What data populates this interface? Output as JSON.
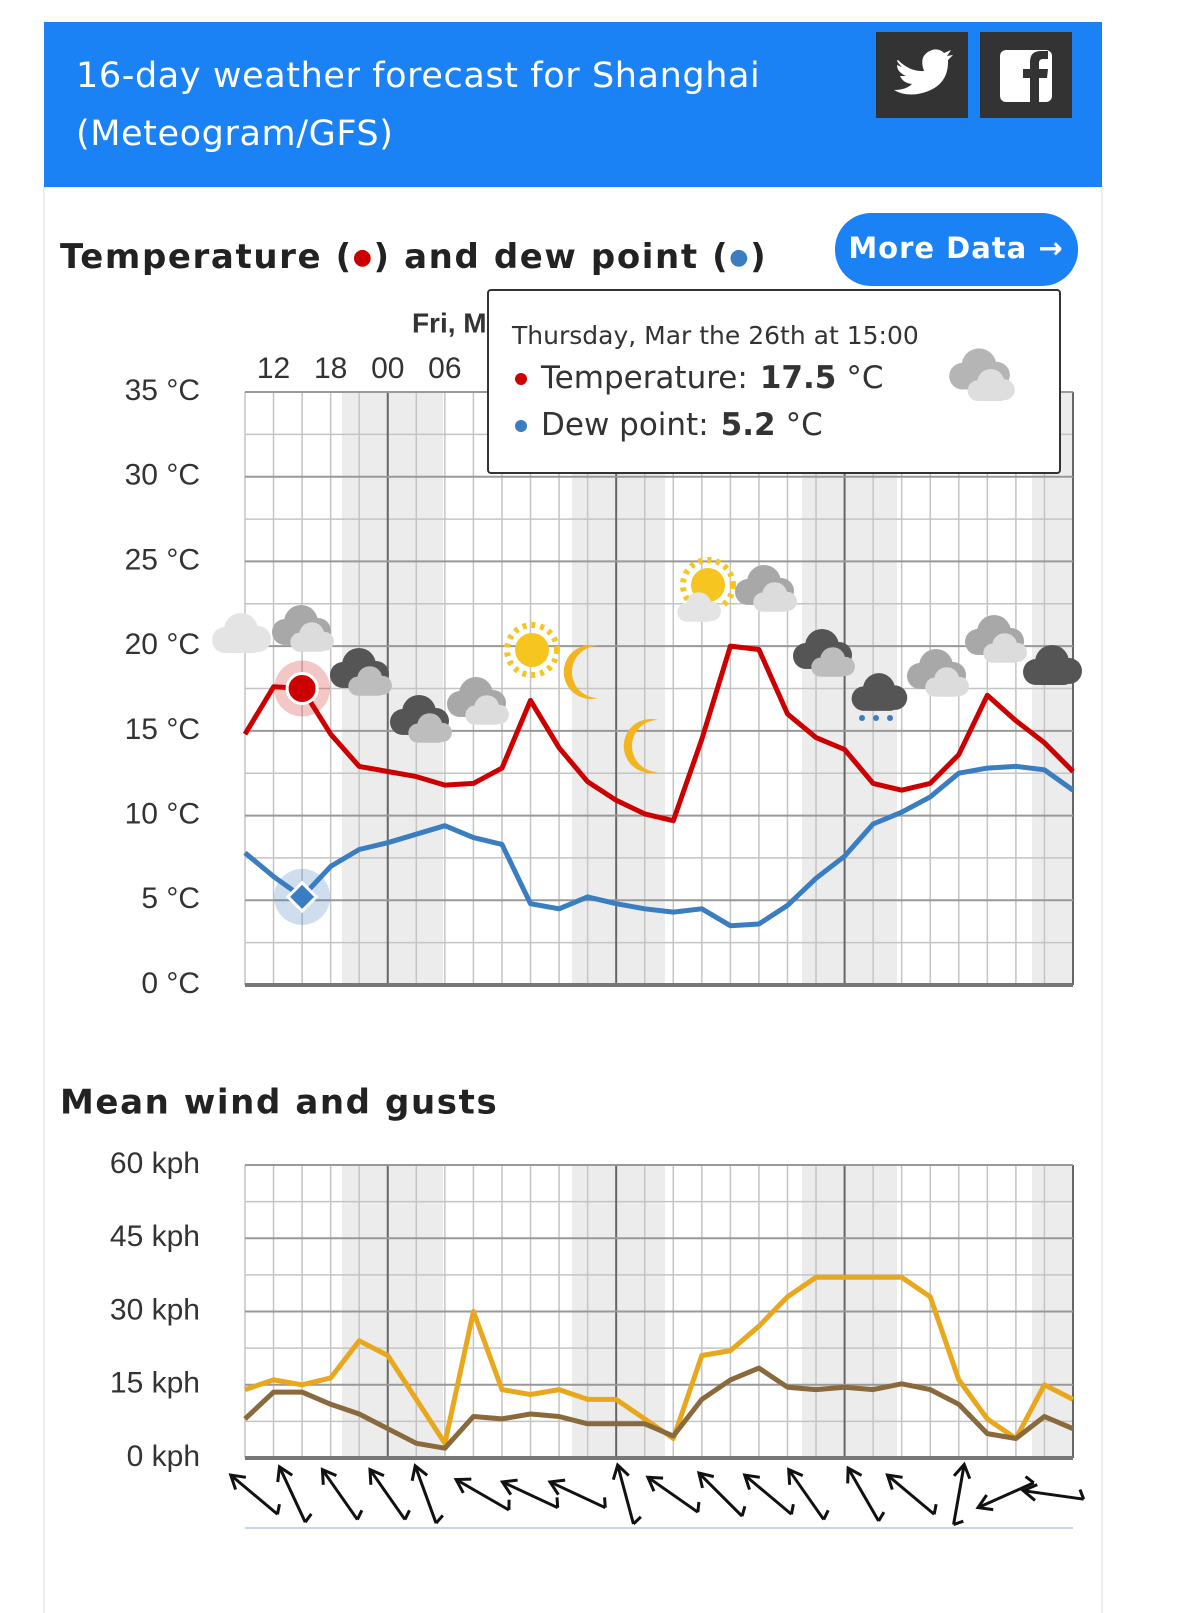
{
  "header": {
    "title": "16-day weather forecast for Shanghai (Meteogram/GFS)"
  },
  "buttons": {
    "more_data": "More Data →"
  },
  "tooltip": {
    "title": "Thursday, Mar the 26th at 15:00",
    "items": [
      {
        "label": "Temperature:",
        "unit": "°C"
      },
      {
        "label": "Dew point:",
        "unit": "°C"
      }
    ]
  },
  "chart_data": [
    {
      "type": "line",
      "title": "Temperature (●) and dew point (●)",
      "x": [
        9,
        12,
        15,
        18,
        21,
        24,
        27,
        30,
        33,
        36,
        39,
        42,
        45,
        48,
        51,
        54,
        57,
        60,
        63,
        66,
        69,
        72,
        75,
        78,
        81,
        84,
        87,
        90,
        93,
        96
      ],
      "xlim": [
        9,
        96
      ],
      "xticks": [
        12,
        18,
        {
          "value": 24,
          "label": "00"
        },
        {
          "value": 30,
          "label": "06"
        }
      ],
      "day_labels": [
        {
          "value": 36,
          "label": "Fri, M"
        }
      ],
      "ylim": [
        0,
        35
      ],
      "yticks": [
        {
          "value": 0,
          "label": "0 °C"
        },
        {
          "value": 5,
          "label": "5 °C"
        },
        {
          "value": 10,
          "label": "10 °C"
        },
        {
          "value": 15,
          "label": "15 °C"
        },
        {
          "value": 20,
          "label": "20 °C"
        },
        {
          "value": 25,
          "label": "25 °C"
        },
        {
          "value": 30,
          "label": "30 °C"
        },
        {
          "value": 35,
          "label": "35 °C"
        }
      ],
      "grid": true,
      "series": [
        {
          "color": "#cc0000",
          "values": [
            14.8,
            17.6,
            17.5,
            14.8,
            12.9,
            12.6,
            12.3,
            11.8,
            11.9,
            12.8,
            16.8,
            14.0,
            12.0,
            10.9,
            10.1,
            9.7,
            14.5,
            20.0,
            19.8,
            16.0,
            14.6,
            13.9,
            11.9,
            11.5,
            11.9,
            13.6,
            17.1,
            15.6,
            14.3,
            12.6
          ]
        },
        {
          "color": "#3a7dc0",
          "values": [
            7.8,
            6.4,
            5.2,
            7.0,
            8.0,
            8.4,
            8.9,
            9.4,
            8.7,
            8.3,
            4.8,
            4.5,
            5.2,
            4.8,
            4.5,
            4.3,
            4.5,
            3.5,
            3.6,
            4.7,
            6.3,
            7.6,
            9.5,
            10.2,
            11.1,
            12.5,
            12.8,
            12.9,
            12.7,
            11.5
          ]
        }
      ]
    },
    {
      "type": "line",
      "title": "Mean wind and gusts",
      "x": [
        9,
        12,
        15,
        18,
        21,
        24,
        27,
        30,
        33,
        36,
        39,
        42,
        45,
        48,
        51,
        54,
        57,
        60,
        63,
        66,
        69,
        72,
        75,
        78,
        81,
        84,
        87,
        90,
        93,
        96
      ],
      "xlim": [
        9,
        96
      ],
      "ylim": [
        0,
        60
      ],
      "yticks": [
        {
          "value": 0,
          "label": "0 kph"
        },
        {
          "value": 15,
          "label": "15 kph"
        },
        {
          "value": 30,
          "label": "30 kph"
        },
        {
          "value": 45,
          "label": "45 kph"
        },
        {
          "value": 60,
          "label": "60 kph"
        }
      ],
      "grid": true,
      "series": [
        {
          "color": "#e8a71c",
          "values": [
            14,
            16,
            15,
            16.4,
            24,
            21,
            12,
            3,
            30,
            14,
            13,
            14,
            12,
            12,
            8,
            4,
            21,
            22,
            27,
            33,
            37,
            37,
            37,
            37,
            33,
            16,
            8,
            4,
            15,
            12
          ]
        },
        {
          "color": "#8a6a3c",
          "values": [
            8,
            13.5,
            13.5,
            11,
            9,
            6,
            3,
            2,
            8.5,
            8,
            9,
            8.5,
            7,
            7,
            7,
            4.5,
            12,
            16,
            18.4,
            14.5,
            14,
            14.5,
            14,
            15.2,
            14,
            11,
            5,
            4,
            8.5,
            6
          ]
        }
      ],
      "wind_direction": {
        "x": [
          10,
          14,
          19,
          24,
          28,
          34,
          39,
          44,
          49,
          54,
          59,
          64,
          68,
          74,
          79,
          84,
          89,
          94
        ],
        "values": [
          -50,
          -25,
          -35,
          -35,
          -20,
          -60,
          -65,
          -65,
          -15,
          -55,
          -45,
          -50,
          -35,
          -30,
          -50,
          10,
          -114,
          -82
        ]
      }
    }
  ]
}
